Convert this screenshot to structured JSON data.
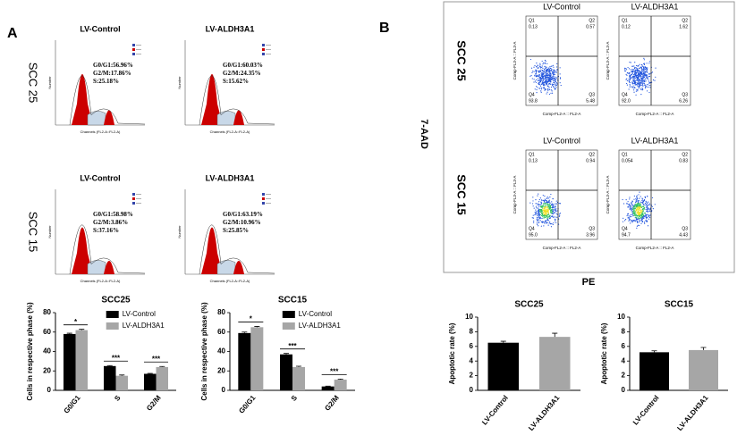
{
  "panel_labels": [
    "A",
    "B"
  ],
  "cell_cycle": {
    "x_label": "Channels (FL2-A::FL2-A)",
    "y_label": "Number",
    "rows": [
      {
        "label": "SCC 25",
        "plots": [
          {
            "title": "LV-Control",
            "stats": [
              "G0/G1:56.96%",
              "G2/M:17.86%",
              "S:25.18%"
            ]
          },
          {
            "title": "LV-ALDH3A1",
            "stats": [
              "G0/G1:60.03%",
              "G2/M:24.35%",
              "S:15.62%"
            ]
          }
        ]
      },
      {
        "label": "SCC 15",
        "plots": [
          {
            "title": "LV-Control",
            "stats": [
              "G0/G1:58.98%",
              "G2/M:3.86%",
              "S:37.16%"
            ]
          },
          {
            "title": "LV-ALDH3A1",
            "stats": [
              "G0/G1:63.19%",
              "G2/M:10.96%",
              "S:25.85%"
            ]
          }
        ]
      }
    ]
  },
  "apoptosis": {
    "y_label": "7-AAD",
    "x_label": "PE",
    "plot_x_label": "Comp-FL2-A :: FL2-A",
    "plot_y_label": "Comp-FL3-A :: FL3-A",
    "rows": [
      {
        "label": "SCC 25",
        "plots": [
          {
            "title": "LV-Control",
            "quadrants": [
              {
                "name": "Q1",
                "value": "0.13"
              },
              {
                "name": "Q2",
                "value": "0.57"
              },
              {
                "name": "Q3",
                "value": "5.48"
              },
              {
                "name": "Q4",
                "value": "93.8"
              }
            ]
          },
          {
            "title": "LV-ALDH3A1",
            "quadrants": [
              {
                "name": "Q1",
                "value": "0.12"
              },
              {
                "name": "Q2",
                "value": "1.62"
              },
              {
                "name": "Q3",
                "value": "6.26"
              },
              {
                "name": "Q4",
                "value": "92.0"
              }
            ]
          }
        ]
      },
      {
        "label": "SCC 15",
        "plots": [
          {
            "title": "LV-Control",
            "quadrants": [
              {
                "name": "Q1",
                "value": "0.13"
              },
              {
                "name": "Q2",
                "value": "0.94"
              },
              {
                "name": "Q3",
                "value": "3.96"
              },
              {
                "name": "Q4",
                "value": "95.0"
              }
            ]
          },
          {
            "title": "LV-ALDH3A1",
            "quadrants": [
              {
                "name": "Q1",
                "value": "0.054"
              },
              {
                "name": "Q2",
                "value": "0.83"
              },
              {
                "name": "Q3",
                "value": "4.43"
              },
              {
                "name": "Q4",
                "value": "94.7"
              }
            ]
          }
        ]
      }
    ]
  },
  "chart_data": [
    {
      "type": "bar",
      "title": "SCC25",
      "y_label": "Cells in respective phase (%)",
      "categories": [
        "G0/G1",
        "S",
        "G2/M"
      ],
      "series": [
        {
          "name": "LV-Control",
          "color": "#000000",
          "values": [
            58,
            25,
            17
          ],
          "errors": [
            0.8,
            0.5,
            0.5
          ]
        },
        {
          "name": "LV-ALDH3A1",
          "color": "#a6a6a6",
          "values": [
            62,
            15,
            24
          ],
          "errors": [
            0.8,
            0.8,
            0.6
          ]
        }
      ],
      "annotations": [
        "*",
        "***",
        "***"
      ],
      "ylim": [
        0,
        80
      ],
      "yticks": [
        0,
        20,
        40,
        60,
        80
      ]
    },
    {
      "type": "bar",
      "title": "SCC15",
      "y_label": "Cells in respective phase (%)",
      "categories": [
        "G0/G1",
        "S",
        "G2/M"
      ],
      "series": [
        {
          "name": "LV-Control",
          "color": "#000000",
          "values": [
            59,
            37,
            4
          ],
          "errors": [
            1,
            1,
            0.4
          ]
        },
        {
          "name": "LV-ALDH3A1",
          "color": "#a6a6a6",
          "values": [
            65,
            24,
            11
          ],
          "errors": [
            0.8,
            0.8,
            0.6
          ]
        }
      ],
      "annotations": [
        "*",
        "***",
        "***"
      ],
      "ylim": [
        0,
        80
      ],
      "yticks": [
        0,
        20,
        40,
        60,
        80
      ]
    },
    {
      "type": "bar",
      "title": "SCC25",
      "y_label": "Apoptotic rate (%)",
      "categories": [
        "LV-Control",
        "LV-ALDH3A1"
      ],
      "values": [
        6.5,
        7.3
      ],
      "errors": [
        0.2,
        0.5
      ],
      "colors": [
        "#000000",
        "#a6a6a6"
      ],
      "ylim": [
        0,
        10
      ],
      "yticks": [
        0,
        2,
        4,
        6,
        8,
        10
      ]
    },
    {
      "type": "bar",
      "title": "SCC15",
      "y_label": "Apoptotic rate (%)",
      "categories": [
        "LV-Control",
        "LV-ALDH3A1"
      ],
      "values": [
        5.2,
        5.5
      ],
      "errors": [
        0.2,
        0.35
      ],
      "colors": [
        "#000000",
        "#a6a6a6"
      ],
      "ylim": [
        0,
        10
      ],
      "yticks": [
        0,
        2,
        4,
        6,
        8,
        10
      ]
    }
  ]
}
